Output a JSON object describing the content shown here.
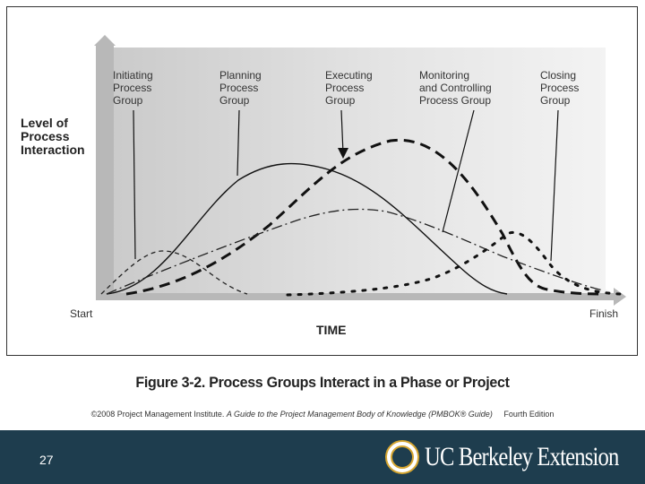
{
  "diagram": {
    "y_axis_label": [
      "Level of",
      "Process",
      "Interaction"
    ],
    "x_axis_label": "TIME",
    "x_start_label": "Start",
    "x_end_label": "Finish",
    "process_groups": [
      {
        "id": "initiating",
        "label": [
          "Initiating",
          "Process",
          "Group"
        ],
        "line_style": "short-dash"
      },
      {
        "id": "planning",
        "label": [
          "Planning",
          "Process",
          "Group"
        ],
        "line_style": "solid"
      },
      {
        "id": "executing",
        "label": [
          "Executing",
          "Process",
          "Group"
        ],
        "line_style": "heavy-dash"
      },
      {
        "id": "monitoring",
        "label": [
          "Monitoring",
          "and Controlling",
          "Process Group"
        ],
        "line_style": "dash-dot"
      },
      {
        "id": "closing",
        "label": [
          "Closing",
          "Process",
          "Group"
        ],
        "line_style": "dotted"
      }
    ]
  },
  "caption": "Figure 3-2. Process Groups Interact in a Phase or Project",
  "copyright": {
    "prefix": "©2008 Project Management Institute.",
    "title": "A Guide to the Project Management Body of Knowledge (PMBOK® Guide)",
    "edition": "Fourth Edition"
  },
  "footer": {
    "slide_number": "27",
    "logo_text": "UC Berkeley Extension",
    "bar_color": "#1e3d4e"
  }
}
